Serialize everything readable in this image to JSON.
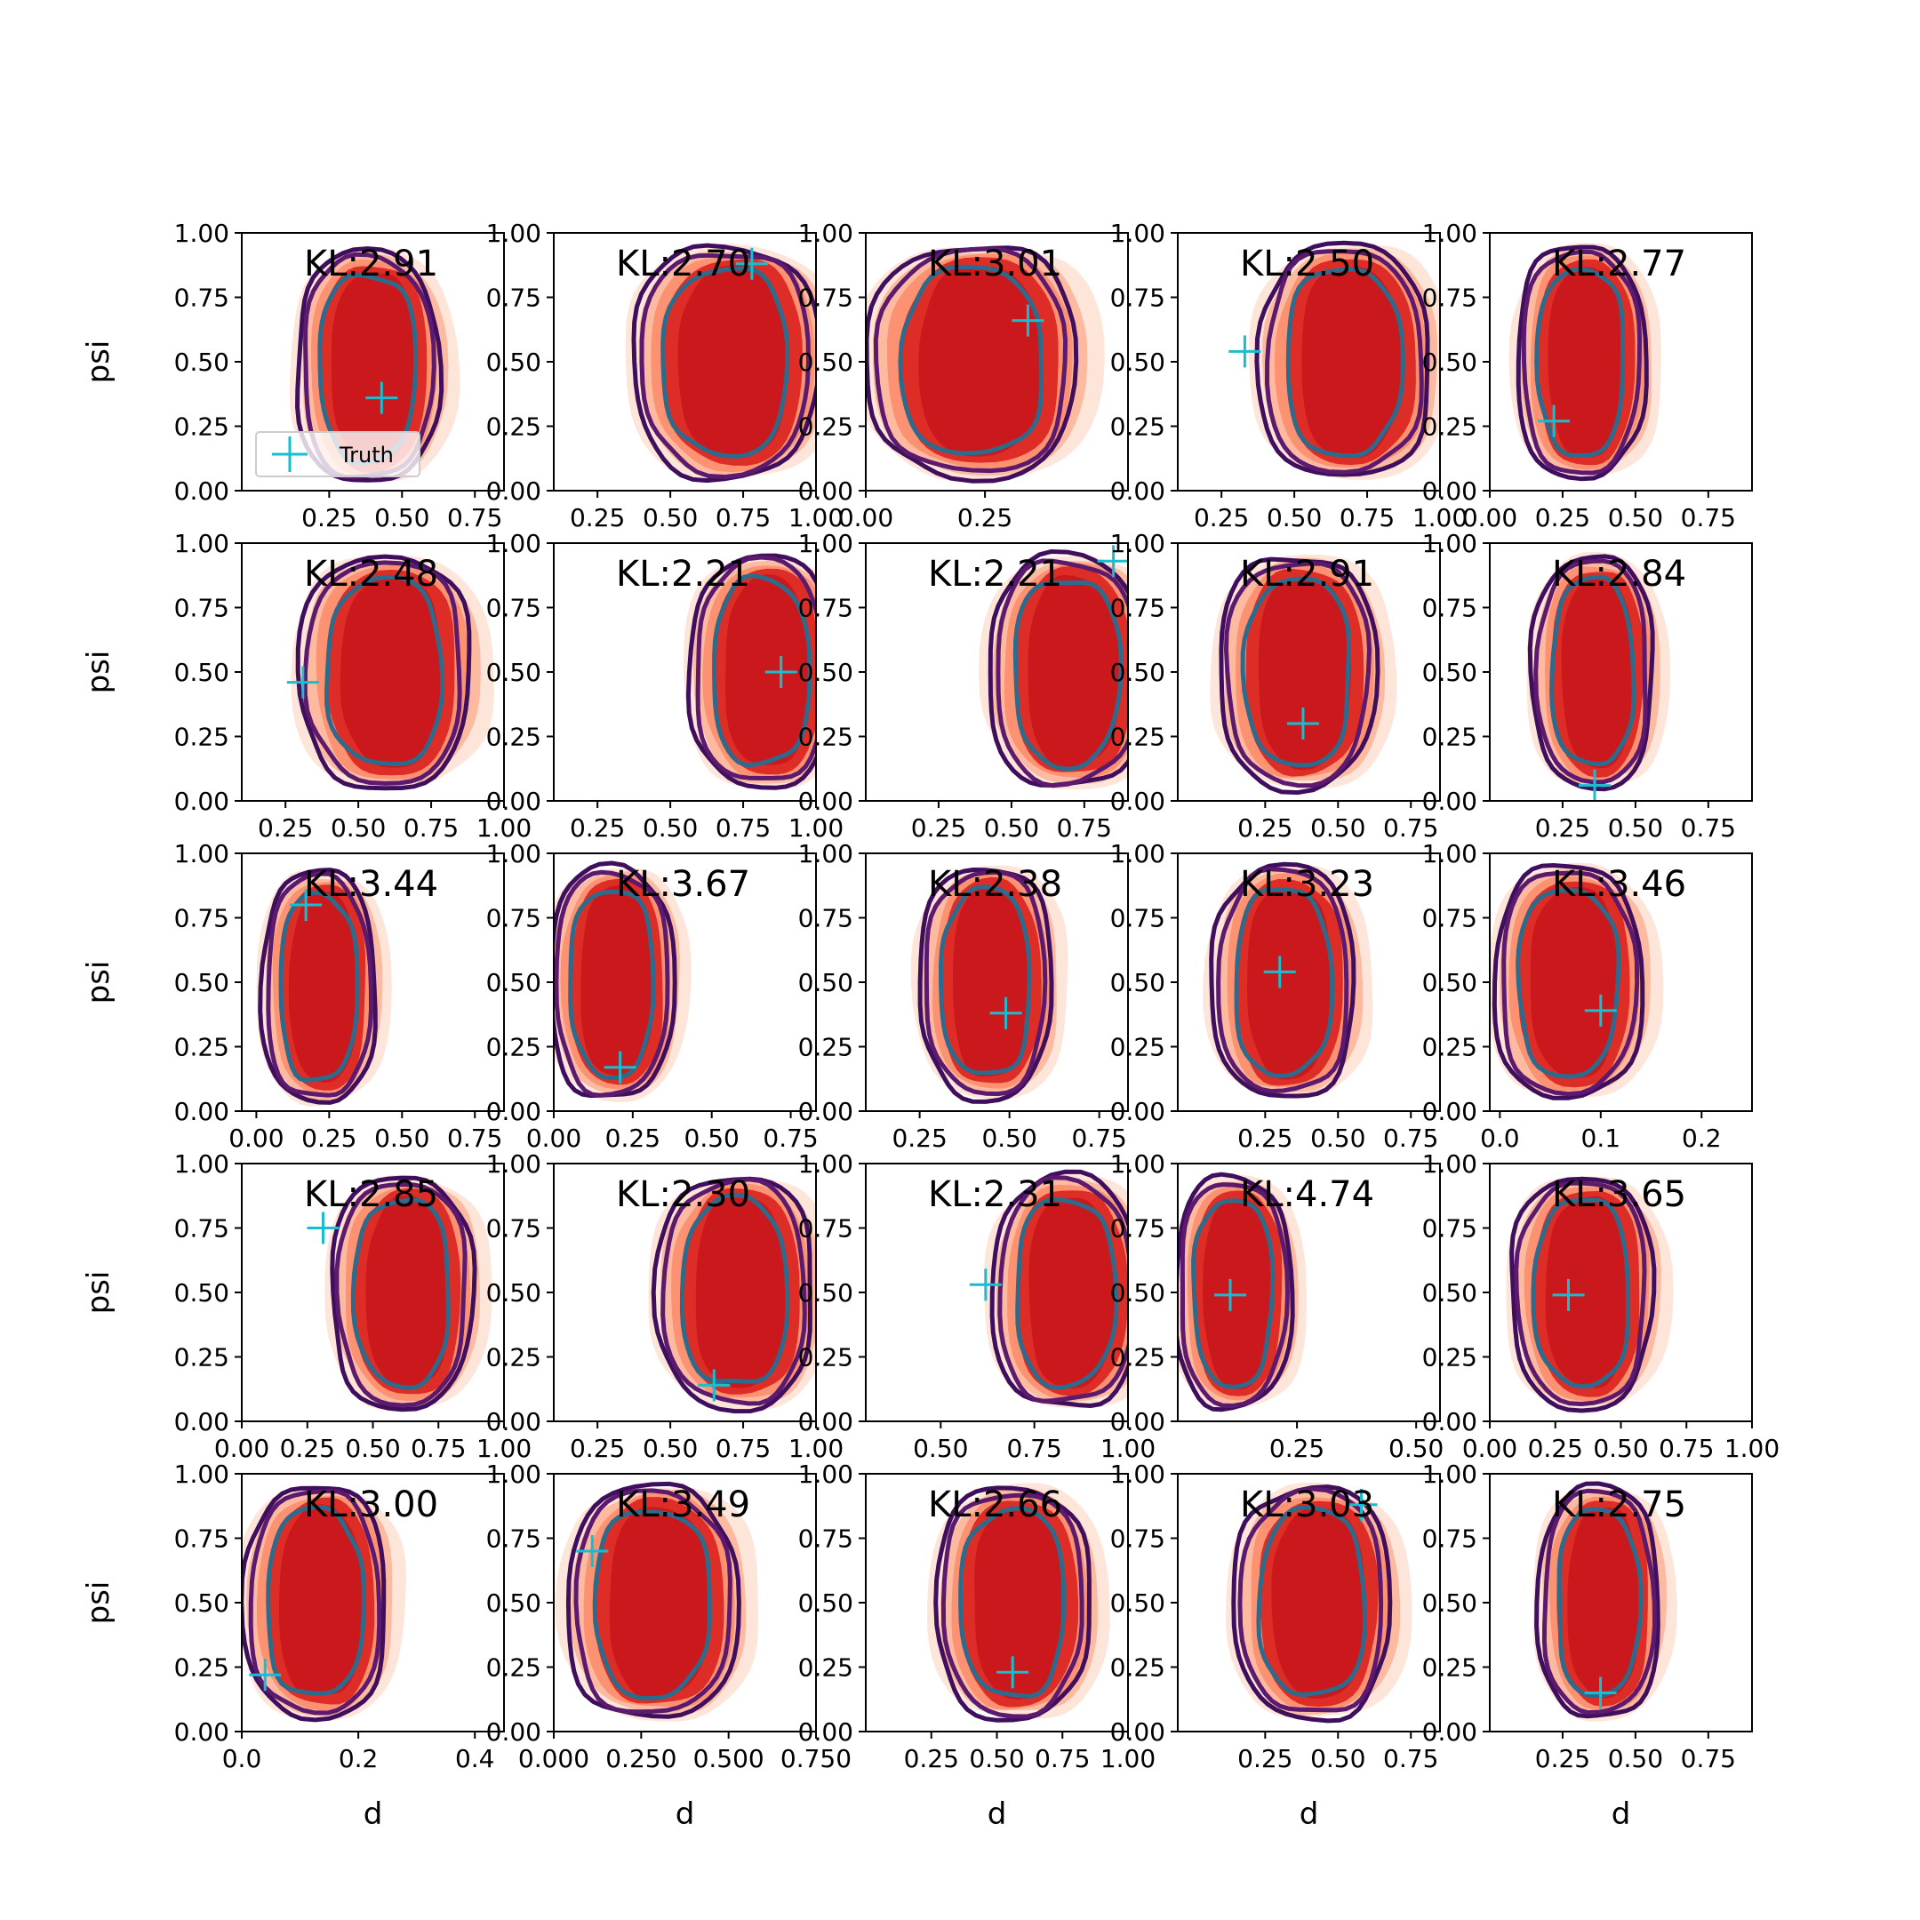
{
  "figure": {
    "colors": {
      "fill_levels": [
        "#fee5d9",
        "#fcbba1",
        "#fc9272",
        "#fb6a4a",
        "#de2d26",
        "#cb181d"
      ],
      "contour_outer": "#3f0f5e",
      "contour_mid": "#5b1a6e",
      "contour_inner": "#2c6b8c",
      "truth_marker": "#17becf"
    },
    "legend": {
      "label": "Truth",
      "marker": "plus-icon"
    }
  },
  "chart_data": [
    {
      "type": "contour",
      "kl": "KL:2.91",
      "x_ticks": [
        "0.25",
        "0.50",
        "0.75"
      ],
      "y_ticks": [
        "0.00",
        "0.25",
        "0.50",
        "0.75",
        "1.00"
      ],
      "xlim": [
        -0.05,
        0.85
      ],
      "ylim": [
        0,
        1
      ],
      "xlabel": "",
      "ylabel": "psi",
      "center": [
        0.39,
        0.48
      ],
      "spread": [
        0.2,
        0.42
      ],
      "truth": [
        0.43,
        0.36
      ]
    },
    {
      "type": "contour",
      "kl": "KL:2.70",
      "x_ticks": [
        "0.25",
        "0.50",
        "0.75",
        "1.00"
      ],
      "y_ticks": [
        "0.00",
        "0.25",
        "0.50",
        "0.75",
        "1.00"
      ],
      "xlim": [
        0.1,
        1.0
      ],
      "ylim": [
        0,
        1
      ],
      "xlabel": "",
      "ylabel": "",
      "center": [
        0.7,
        0.5
      ],
      "spread": [
        0.26,
        0.42
      ],
      "truth": [
        0.78,
        0.88
      ]
    },
    {
      "type": "contour",
      "kl": "KL:3.01",
      "x_ticks": [
        "0.00",
        "0.25"
      ],
      "y_ticks": [
        "0.00",
        "0.25",
        "0.50",
        "0.75",
        "1.00"
      ],
      "xlim": [
        0.0,
        0.55
      ],
      "ylim": [
        0,
        1
      ],
      "xlabel": "",
      "ylabel": "",
      "center": [
        0.23,
        0.5
      ],
      "spread": [
        0.18,
        0.42
      ],
      "truth": [
        0.34,
        0.66
      ]
    },
    {
      "type": "contour",
      "kl": "KL:2.50",
      "x_ticks": [
        "0.25",
        "0.50",
        "0.75",
        "1.00"
      ],
      "y_ticks": [
        "0.00",
        "0.25",
        "0.50",
        "0.75",
        "1.00"
      ],
      "xlim": [
        0.1,
        1.0
      ],
      "ylim": [
        0,
        1
      ],
      "xlabel": "",
      "ylabel": "",
      "center": [
        0.68,
        0.5
      ],
      "spread": [
        0.24,
        0.42
      ],
      "truth": [
        0.33,
        0.54
      ]
    },
    {
      "type": "contour",
      "kl": "KL:2.77",
      "x_ticks": [
        "0.00",
        "0.25",
        "0.50",
        "0.75"
      ],
      "y_ticks": [
        "0.00",
        "0.25",
        "0.50",
        "0.75",
        "1.00"
      ],
      "xlim": [
        0.0,
        0.9
      ],
      "ylim": [
        0,
        1
      ],
      "xlabel": "",
      "ylabel": "",
      "center": [
        0.32,
        0.5
      ],
      "spread": [
        0.18,
        0.42
      ],
      "truth": [
        0.22,
        0.27
      ]
    },
    {
      "type": "contour",
      "kl": "KL:2.48",
      "x_ticks": [
        "0.25",
        "0.50",
        "0.75",
        "1.00"
      ],
      "y_ticks": [
        "0.00",
        "0.25",
        "0.50",
        "0.75",
        "1.00"
      ],
      "xlim": [
        0.1,
        1.0
      ],
      "ylim": [
        0,
        1
      ],
      "xlabel": "",
      "ylabel": "psi",
      "center": [
        0.6,
        0.5
      ],
      "spread": [
        0.24,
        0.42
      ],
      "truth": [
        0.31,
        0.46
      ]
    },
    {
      "type": "contour",
      "kl": "KL:2.21",
      "x_ticks": [
        "0.25",
        "0.50",
        "0.75",
        "1.00"
      ],
      "y_ticks": [
        "0.00",
        "0.25",
        "0.50",
        "0.75",
        "1.00"
      ],
      "xlim": [
        0.1,
        1.0
      ],
      "ylim": [
        0,
        1
      ],
      "xlabel": "",
      "ylabel": "",
      "center": [
        0.82,
        0.5
      ],
      "spread": [
        0.2,
        0.42
      ],
      "truth": [
        0.88,
        0.5
      ]
    },
    {
      "type": "contour",
      "kl": "KL:2.21",
      "x_ticks": [
        "0.25",
        "0.50",
        "0.75",
        "1.00"
      ],
      "y_ticks": [
        "0.00",
        "0.25",
        "0.50",
        "0.75",
        "1.00"
      ],
      "xlim": [
        0.0,
        0.9
      ],
      "ylim": [
        0,
        1
      ],
      "xlabel": "",
      "ylabel": "",
      "center": [
        0.7,
        0.5
      ],
      "spread": [
        0.22,
        0.42
      ],
      "truth": [
        0.85,
        0.93
      ]
    },
    {
      "type": "contour",
      "kl": "KL:2.91",
      "x_ticks": [
        "0.25",
        "0.50",
        "0.75"
      ],
      "y_ticks": [
        "0.00",
        "0.25",
        "0.50",
        "0.75",
        "1.00"
      ],
      "xlim": [
        -0.05,
        0.85
      ],
      "ylim": [
        0,
        1
      ],
      "xlabel": "",
      "ylabel": "",
      "center": [
        0.37,
        0.5
      ],
      "spread": [
        0.22,
        0.42
      ],
      "truth": [
        0.38,
        0.3
      ]
    },
    {
      "type": "contour",
      "kl": "KL:2.84",
      "x_ticks": [
        "0.25",
        "0.50",
        "0.75"
      ],
      "y_ticks": [
        "0.00",
        "0.25",
        "0.50",
        "0.75",
        "1.00"
      ],
      "xlim": [
        0.0,
        0.9
      ],
      "ylim": [
        0,
        1
      ],
      "xlabel": "",
      "ylabel": "",
      "center": [
        0.36,
        0.5
      ],
      "spread": [
        0.17,
        0.42
      ],
      "truth": [
        0.36,
        0.06
      ]
    },
    {
      "type": "contour",
      "kl": "KL:3.44",
      "x_ticks": [
        "0.00",
        "0.25",
        "0.50",
        "0.75"
      ],
      "y_ticks": [
        "0.00",
        "0.25",
        "0.50",
        "0.75",
        "1.00"
      ],
      "xlim": [
        -0.05,
        0.85
      ],
      "ylim": [
        0,
        1
      ],
      "xlabel": "",
      "ylabel": "psi",
      "center": [
        0.22,
        0.48
      ],
      "spread": [
        0.16,
        0.42
      ],
      "truth": [
        0.17,
        0.8
      ]
    },
    {
      "type": "contour",
      "kl": "KL:3.67",
      "x_ticks": [
        "0.00",
        "0.25",
        "0.50",
        "0.75"
      ],
      "y_ticks": [
        "0.00",
        "0.25",
        "0.50",
        "0.75",
        "1.00"
      ],
      "xlim": [
        0.0,
        0.83
      ],
      "ylim": [
        0,
        1
      ],
      "xlabel": "",
      "ylabel": "",
      "center": [
        0.19,
        0.5
      ],
      "spread": [
        0.16,
        0.42
      ],
      "truth": [
        0.21,
        0.17
      ]
    },
    {
      "type": "contour",
      "kl": "KL:2.38",
      "x_ticks": [
        "0.25",
        "0.50",
        "0.75"
      ],
      "y_ticks": [
        "0.00",
        "0.25",
        "0.50",
        "0.75",
        "1.00"
      ],
      "xlim": [
        0.1,
        0.83
      ],
      "ylim": [
        0,
        1
      ],
      "xlabel": "",
      "ylabel": "",
      "center": [
        0.44,
        0.5
      ],
      "spread": [
        0.15,
        0.42
      ],
      "truth": [
        0.49,
        0.38
      ]
    },
    {
      "type": "contour",
      "kl": "KL:3.23",
      "x_ticks": [
        "0.25",
        "0.50",
        "0.75"
      ],
      "y_ticks": [
        "0.00",
        "0.25",
        "0.50",
        "0.75",
        "1.00"
      ],
      "xlim": [
        -0.05,
        0.85
      ],
      "ylim": [
        0,
        1
      ],
      "xlabel": "",
      "ylabel": "",
      "center": [
        0.32,
        0.5
      ],
      "spread": [
        0.2,
        0.42
      ],
      "truth": [
        0.3,
        0.54
      ]
    },
    {
      "type": "contour",
      "kl": "KL:3.46",
      "x_ticks": [
        "0.0",
        "0.1",
        "0.2"
      ],
      "y_ticks": [
        "0.00",
        "0.25",
        "0.50",
        "0.75",
        "1.00"
      ],
      "xlim": [
        -0.01,
        0.25
      ],
      "ylim": [
        0,
        1
      ],
      "xlabel": "",
      "ylabel": "",
      "center": [
        0.07,
        0.5
      ],
      "spread": [
        0.06,
        0.42
      ],
      "truth": [
        0.1,
        0.39
      ]
    },
    {
      "type": "contour",
      "kl": "KL:2.85",
      "x_ticks": [
        "0.00",
        "0.25",
        "0.50",
        "0.75",
        "1.00"
      ],
      "y_ticks": [
        "0.00",
        "0.25",
        "0.50",
        "0.75",
        "1.00"
      ],
      "xlim": [
        0.0,
        1.0
      ],
      "ylim": [
        0,
        1
      ],
      "xlabel": "",
      "ylabel": "psi",
      "center": [
        0.62,
        0.5
      ],
      "spread": [
        0.22,
        0.42
      ],
      "truth": [
        0.31,
        0.75
      ]
    },
    {
      "type": "contour",
      "kl": "KL:2.30",
      "x_ticks": [
        "0.25",
        "0.50",
        "0.75",
        "1.00"
      ],
      "y_ticks": [
        "0.00",
        "0.25",
        "0.50",
        "0.75",
        "1.00"
      ],
      "xlim": [
        0.1,
        1.0
      ],
      "ylim": [
        0,
        1
      ],
      "xlabel": "",
      "ylabel": "",
      "center": [
        0.73,
        0.5
      ],
      "spread": [
        0.22,
        0.42
      ],
      "truth": [
        0.65,
        0.14
      ]
    },
    {
      "type": "contour",
      "kl": "KL:2.31",
      "x_ticks": [
        "0.50",
        "0.75",
        "1.00"
      ],
      "y_ticks": [
        "0.00",
        "0.25",
        "0.50",
        "0.75",
        "1.00"
      ],
      "xlim": [
        0.3,
        1.0
      ],
      "ylim": [
        0,
        1
      ],
      "xlabel": "",
      "ylabel": "",
      "center": [
        0.84,
        0.5
      ],
      "spread": [
        0.16,
        0.42
      ],
      "truth": [
        0.62,
        0.53
      ]
    },
    {
      "type": "contour",
      "kl": "KL:4.74",
      "x_ticks": [
        "0.25",
        "0.50"
      ],
      "y_ticks": [
        "0.00",
        "0.25",
        "0.50",
        "0.75",
        "1.00"
      ],
      "xlim": [
        0.0,
        0.55
      ],
      "ylim": [
        0,
        1
      ],
      "xlabel": "",
      "ylabel": "",
      "center": [
        0.12,
        0.5
      ],
      "spread": [
        0.1,
        0.42
      ],
      "truth": [
        0.11,
        0.49
      ]
    },
    {
      "type": "contour",
      "kl": "KL:3.65",
      "x_ticks": [
        "0.00",
        "0.25",
        "0.50",
        "0.75",
        "1.00"
      ],
      "y_ticks": [
        "0.00",
        "0.25",
        "0.50",
        "0.75",
        "1.00"
      ],
      "xlim": [
        0.0,
        1.0
      ],
      "ylim": [
        0,
        1
      ],
      "xlabel": "",
      "ylabel": "",
      "center": [
        0.36,
        0.5
      ],
      "spread": [
        0.22,
        0.42
      ],
      "truth": [
        0.3,
        0.49
      ]
    },
    {
      "type": "contour",
      "kl": "KL:3.00",
      "x_ticks": [
        "0.0",
        "0.2",
        "0.4"
      ],
      "y_ticks": [
        "0.00",
        "0.25",
        "0.50",
        "0.75",
        "1.00"
      ],
      "xlim": [
        0.0,
        0.45
      ],
      "ylim": [
        0,
        1
      ],
      "xlabel": "d",
      "ylabel": "psi",
      "center": [
        0.13,
        0.5
      ],
      "spread": [
        0.1,
        0.42
      ],
      "truth": [
        0.04,
        0.22
      ]
    },
    {
      "type": "contour",
      "kl": "KL:3.49",
      "x_ticks": [
        "0.000",
        "0.250",
        "0.500",
        "0.750"
      ],
      "y_ticks": [
        "0.00",
        "0.25",
        "0.50",
        "0.75",
        "1.00"
      ],
      "xlim": [
        0.0,
        0.75
      ],
      "ylim": [
        0,
        1
      ],
      "xlabel": "d",
      "ylabel": "",
      "center": [
        0.29,
        0.5
      ],
      "spread": [
        0.2,
        0.42
      ],
      "truth": [
        0.11,
        0.7
      ]
    },
    {
      "type": "contour",
      "kl": "KL:2.66",
      "x_ticks": [
        "0.25",
        "0.50",
        "0.75",
        "1.00"
      ],
      "y_ticks": [
        "0.00",
        "0.25",
        "0.50",
        "0.75",
        "1.00"
      ],
      "xlim": [
        0.0,
        1.0
      ],
      "ylim": [
        0,
        1
      ],
      "xlabel": "d",
      "ylabel": "",
      "center": [
        0.57,
        0.5
      ],
      "spread": [
        0.24,
        0.42
      ],
      "truth": [
        0.56,
        0.23
      ]
    },
    {
      "type": "contour",
      "kl": "KL:3.03",
      "x_ticks": [
        "0.25",
        "0.50",
        "0.75"
      ],
      "y_ticks": [
        "0.00",
        "0.25",
        "0.50",
        "0.75",
        "1.00"
      ],
      "xlim": [
        -0.05,
        0.85
      ],
      "ylim": [
        0,
        1
      ],
      "xlabel": "d",
      "ylabel": "",
      "center": [
        0.42,
        0.5
      ],
      "spread": [
        0.22,
        0.42
      ],
      "truth": [
        0.58,
        0.88
      ]
    },
    {
      "type": "contour",
      "kl": "KL:2.75",
      "x_ticks": [
        "0.25",
        "0.50",
        "0.75"
      ],
      "y_ticks": [
        "0.00",
        "0.25",
        "0.50",
        "0.75",
        "1.00"
      ],
      "xlim": [
        0.0,
        0.9
      ],
      "ylim": [
        0,
        1
      ],
      "xlabel": "d",
      "ylabel": "",
      "center": [
        0.38,
        0.5
      ],
      "spread": [
        0.17,
        0.42
      ],
      "truth": [
        0.38,
        0.15
      ]
    }
  ]
}
